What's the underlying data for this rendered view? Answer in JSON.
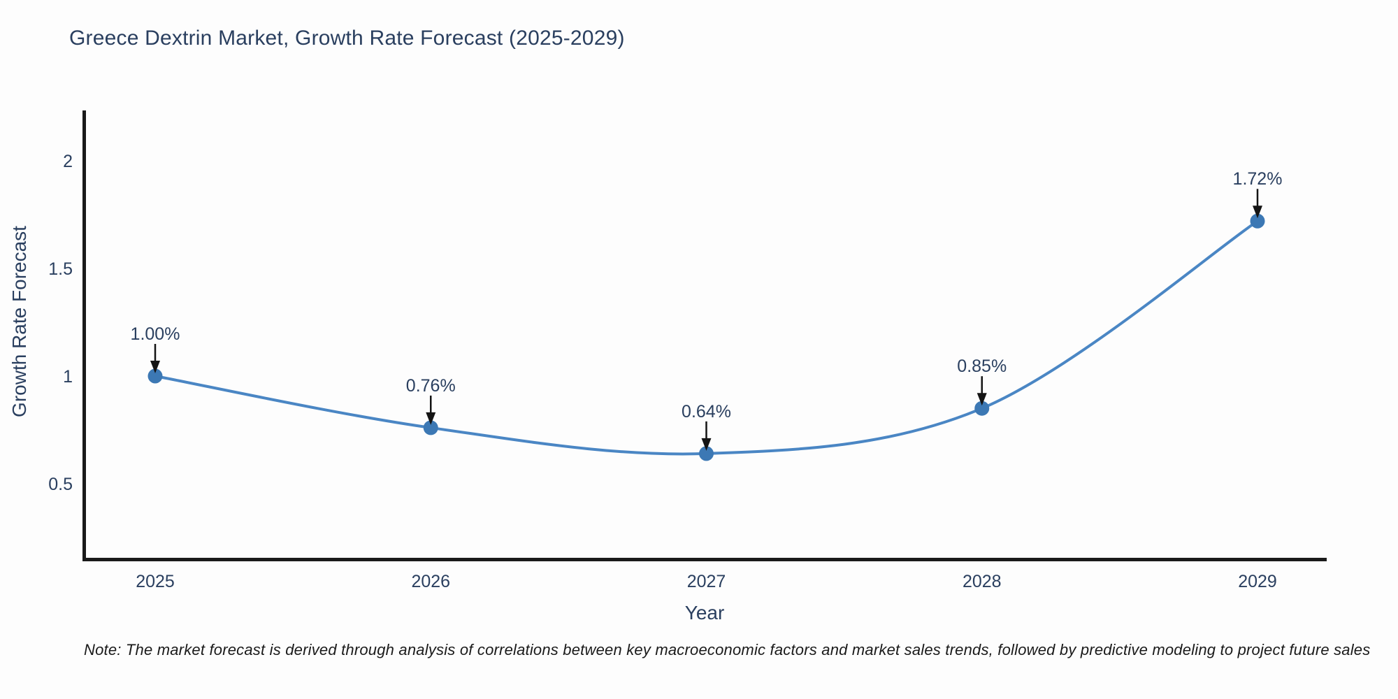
{
  "title": "Greece Dextrin Market, Growth Rate Forecast (2025-2029)",
  "note": "Note: The market forecast is derived through analysis of correlations between key macroeconomic factors and market sales trends, followed by predictive modeling to project future sales",
  "chart_data": {
    "type": "line",
    "title": "Greece Dextrin Market, Growth Rate Forecast (2025-2029)",
    "x": [
      2025,
      2026,
      2027,
      2028,
      2029
    ],
    "values": [
      1.0,
      0.76,
      0.64,
      0.85,
      1.72
    ],
    "point_labels": [
      "1.00%",
      "0.76%",
      "0.64%",
      "0.85%",
      "1.72%"
    ],
    "xlabel": "Year",
    "ylabel": "Growth Rate Forecast",
    "xtick_labels": [
      "2025",
      "2026",
      "2027",
      "2028",
      "2029"
    ],
    "yticks": [
      0.5,
      1,
      1.5,
      2
    ],
    "ytick_labels": [
      "0.5",
      "1",
      "1.5",
      "2"
    ],
    "ylim": [
      0.15,
      2.23
    ],
    "xlim": [
      2024.74,
      2029.26
    ],
    "grid": false,
    "legend_position": "none",
    "line_shape": "spline",
    "colors": {
      "line": "#4a86c4",
      "marker": "#3c78b4",
      "axis_line": "#1a1a1a",
      "text": "#2a3f5f",
      "annotation_arrow": "#141414",
      "note_text": "#1a1a1a",
      "background": "#fdfdfd"
    }
  }
}
